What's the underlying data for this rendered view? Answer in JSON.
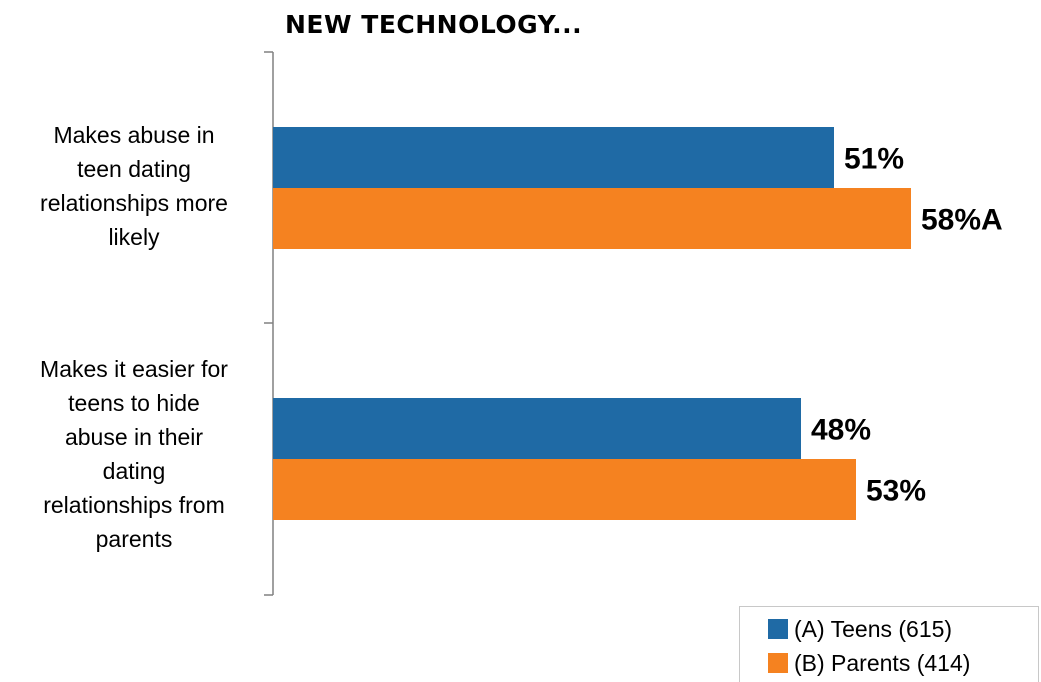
{
  "chart_data": {
    "type": "bar",
    "orientation": "horizontal",
    "title": "NEW TECHNOLOGY...",
    "categories": [
      "Makes abuse in teen dating relationships more likely",
      "Makes it easier for teens to hide abuse in their dating relationships from parents"
    ],
    "category_lines": [
      [
        "Makes abuse in",
        "teen dating",
        "relationships more",
        "likely"
      ],
      [
        "Makes it easier for",
        "teens to hide",
        "abuse in their",
        "dating",
        "relationships from",
        "parents"
      ]
    ],
    "series": [
      {
        "name": "(A) Teens (615)",
        "values": [
          51,
          48
        ],
        "labels": [
          "51%",
          "48%"
        ],
        "color": "#1f6aa5"
      },
      {
        "name": "(B) Parents (414)",
        "values": [
          58,
          53
        ],
        "labels": [
          "58%A",
          "53%"
        ],
        "color": "#f58220"
      }
    ],
    "xlim": [
      0,
      100
    ],
    "grid": false,
    "legend_position": "bottom-right"
  }
}
